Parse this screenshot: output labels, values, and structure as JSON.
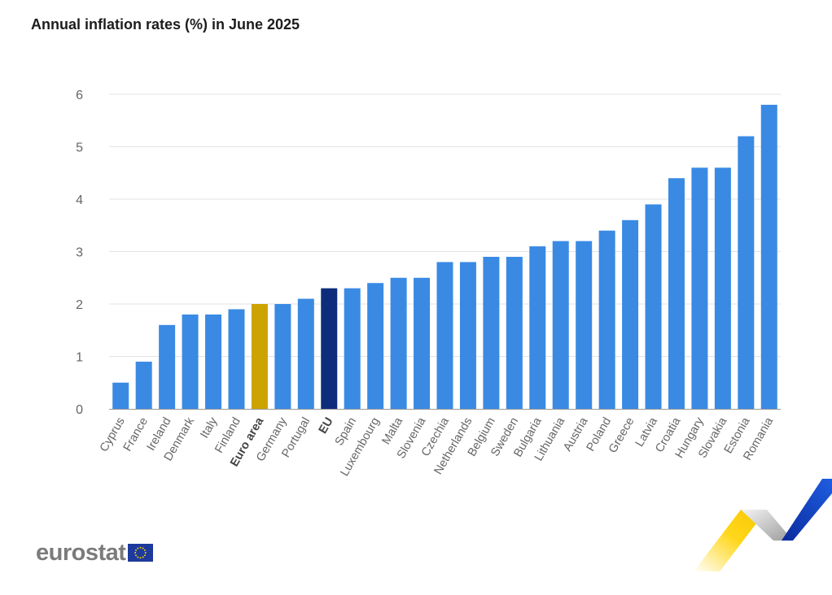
{
  "page": {
    "title": "Annual inflation rates (%) in June 2025",
    "brand": "eurostat"
  },
  "colors": {
    "country": "#3a8ae4",
    "euro_area": "#cca300",
    "eu": "#0d2c7b",
    "grid": "#e3e3e3",
    "axis_text": "#666666"
  },
  "chart_data": {
    "type": "bar",
    "title": "Annual inflation rates (%) in June 2025",
    "xlabel": "",
    "ylabel": "",
    "ylim": [
      0,
      6
    ],
    "yticks": [
      0,
      1,
      2,
      3,
      4,
      5,
      6
    ],
    "grid": true,
    "legend": "none",
    "categories": [
      "Cyprus",
      "France",
      "Ireland",
      "Denmark",
      "Italy",
      "Finland",
      "Euro area",
      "Germany",
      "Portugal",
      "EU",
      "Spain",
      "Luxembourg",
      "Malta",
      "Slovenia",
      "Czechia",
      "Netherlands",
      "Belgium",
      "Sweden",
      "Bulgaria",
      "Lithuania",
      "Austria",
      "Poland",
      "Greece",
      "Latvia",
      "Croatia",
      "Hungary",
      "Slovakia",
      "Estonia",
      "Romania"
    ],
    "values": [
      0.5,
      0.9,
      1.6,
      1.8,
      1.8,
      1.9,
      2.0,
      2.0,
      2.1,
      2.3,
      2.3,
      2.4,
      2.5,
      2.5,
      2.8,
      2.8,
      2.9,
      2.9,
      3.1,
      3.2,
      3.2,
      3.4,
      3.6,
      3.9,
      4.4,
      4.6,
      4.6,
      5.2,
      5.8
    ],
    "highlight": {
      "Euro area": "euro_area",
      "EU": "eu"
    },
    "bold_labels": [
      "Euro area",
      "EU"
    ]
  }
}
